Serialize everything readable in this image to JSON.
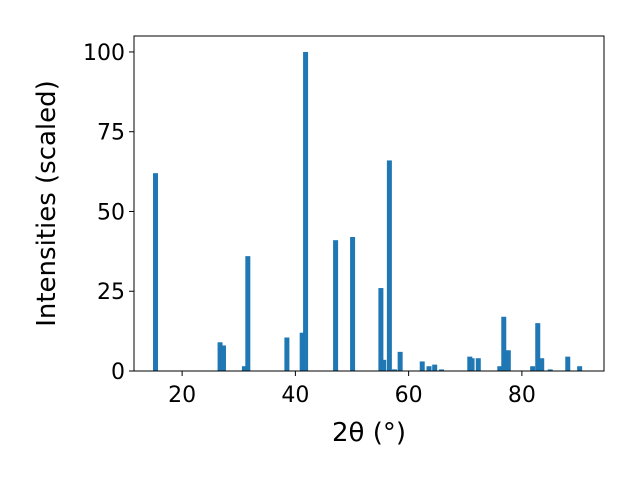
{
  "chart_data": {
    "type": "bar",
    "xlabel": "2θ (°)",
    "ylabel": "Intensities (scaled)",
    "xlim": [
      11.5,
      94.5
    ],
    "ylim": [
      0,
      105
    ],
    "xticks": [
      20,
      40,
      60,
      80
    ],
    "yticks": [
      0,
      25,
      50,
      75,
      100
    ],
    "grid": false,
    "bar_color": "#1f77b4",
    "series": [
      {
        "x": [
          15.3,
          26.7,
          27.3,
          31.0,
          31.6,
          38.5,
          41.2,
          41.8,
          47.1,
          50.1,
          55.1,
          55.6,
          56.6,
          57.5,
          58.5,
          62.4,
          63.6,
          64.6,
          65.8,
          70.8,
          71.2,
          72.3,
          76.1,
          76.8,
          77.6,
          81.9,
          82.8,
          83.5,
          85.0,
          88.1,
          90.2
        ],
        "y": [
          62,
          9,
          8,
          1.5,
          36,
          10.5,
          12,
          100,
          41,
          42,
          26,
          3.5,
          66,
          0.5,
          6,
          3,
          1.5,
          2,
          0.5,
          4.5,
          4,
          4,
          1.5,
          17,
          6.5,
          1.5,
          15,
          4,
          0.5,
          4.5,
          1.5
        ]
      }
    ]
  }
}
